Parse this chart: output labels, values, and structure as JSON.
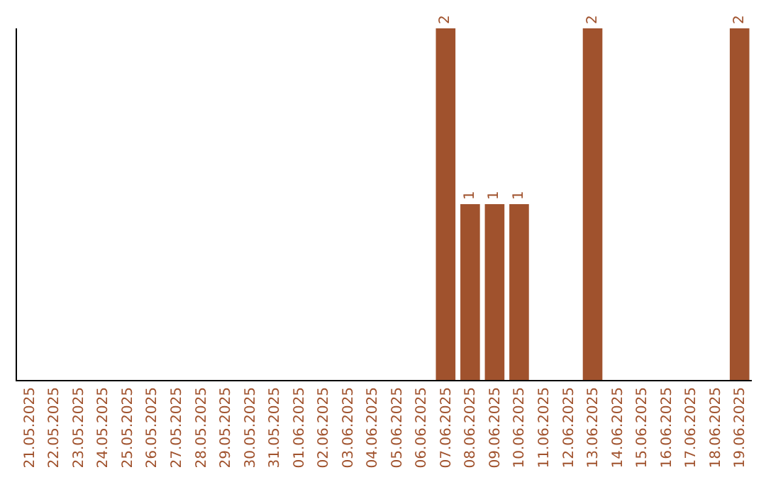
{
  "chart_data": {
    "type": "bar",
    "categories": [
      "21.05.2025",
      "22.05.2025",
      "23.05.2025",
      "24.05.2025",
      "25.05.2025",
      "26.05.2025",
      "27.05.2025",
      "28.05.2025",
      "29.05.2025",
      "30.05.2025",
      "31.05.2025",
      "01.06.2025",
      "02.06.2025",
      "03.06.2025",
      "04.06.2025",
      "05.06.2025",
      "06.06.2025",
      "07.06.2025",
      "08.06.2025",
      "09.06.2025",
      "10.06.2025",
      "11.06.2025",
      "12.06.2025",
      "13.06.2025",
      "14.06.2025",
      "15.06.2025",
      "16.06.2025",
      "17.06.2025",
      "18.06.2025",
      "19.06.2025"
    ],
    "values": [
      null,
      null,
      null,
      null,
      null,
      null,
      null,
      null,
      null,
      null,
      null,
      null,
      null,
      null,
      null,
      null,
      null,
      2,
      1,
      1,
      1,
      null,
      null,
      2,
      null,
      null,
      null,
      null,
      null,
      2
    ],
    "color": "#a0522d",
    "data_labels": true,
    "grid": false,
    "legend": false
  }
}
